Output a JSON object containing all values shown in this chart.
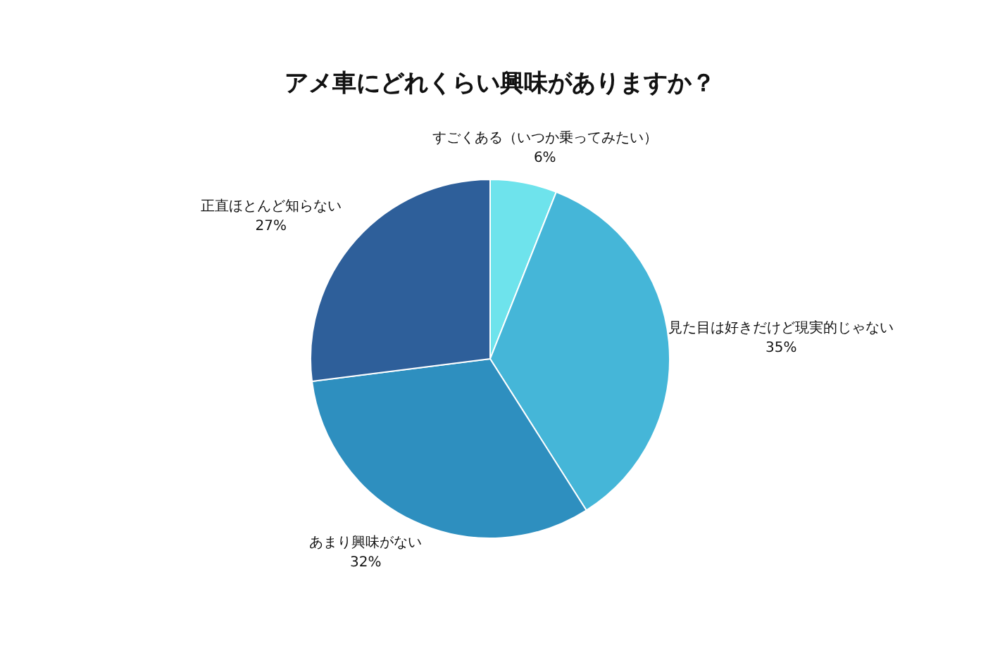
{
  "chart_data": {
    "type": "pie",
    "title": "アメ車にどれくらい興味がありますか？",
    "categories": [
      "すごくある（いつか乗ってみたい）",
      "見た目は好きだけど現実的じゃない",
      "あまり興味がない",
      "正直ほとんど知らない"
    ],
    "values": [
      6,
      35,
      32,
      27
    ],
    "colors": [
      "#6ee3ec",
      "#45b6d8",
      "#2e8fbf",
      "#2e5f9a"
    ],
    "value_labels": [
      "6%",
      "35%",
      "32%",
      "27%"
    ],
    "legend": false
  }
}
